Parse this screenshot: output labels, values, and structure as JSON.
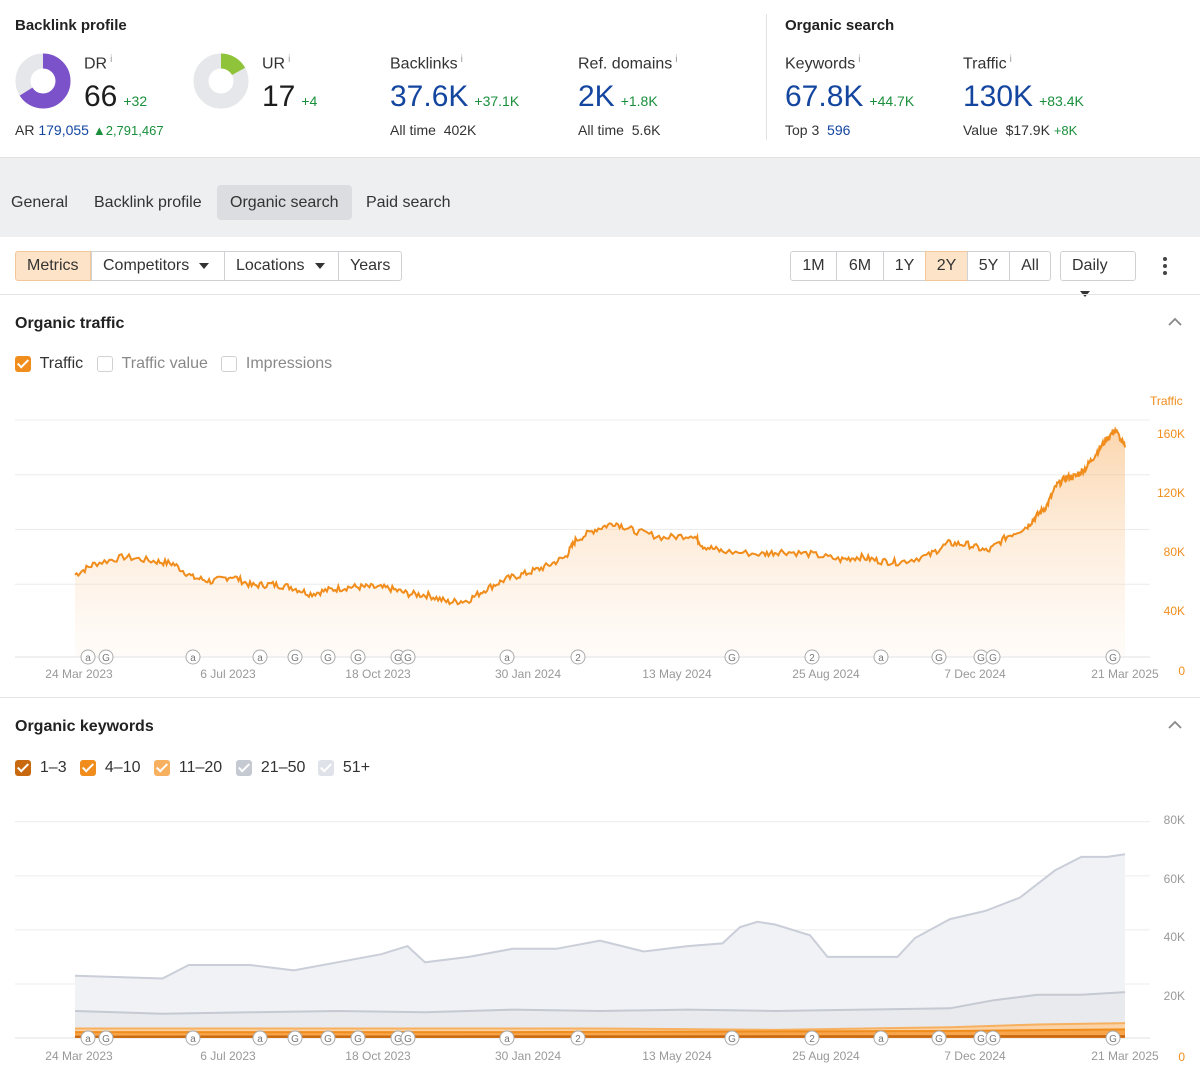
{
  "backlink": {
    "title": "Backlink profile",
    "dr": {
      "label": "DR",
      "info": "i",
      "value": "66",
      "delta": "+32",
      "fill": 0.66,
      "color": "#7b52c9"
    },
    "ar": {
      "label": "AR",
      "value": "179,055",
      "delta": "2,791,467"
    },
    "ur": {
      "label": "UR",
      "info": "i",
      "value": "17",
      "delta": "+4",
      "fill": 0.17,
      "color": "#8fc43a"
    },
    "backlinks": {
      "label": "Backlinks",
      "info": "i",
      "value": "37.6K",
      "delta": "+37.1K",
      "sub_label": "All time",
      "sub_value": "402K"
    },
    "refdomains": {
      "label": "Ref. domains",
      "info": "i",
      "value": "2K",
      "delta": "+1.8K",
      "sub_label": "All time",
      "sub_value": "5.6K"
    }
  },
  "organic": {
    "title": "Organic search",
    "keywords": {
      "label": "Keywords",
      "info": "i",
      "value": "67.8K",
      "delta": "+44.7K",
      "sub_label": "Top 3",
      "sub_value": "596"
    },
    "traffic": {
      "label": "Traffic",
      "info": "i",
      "value": "130K",
      "delta": "+83.4K",
      "sub_label": "Value",
      "sub_value": "$17.9K",
      "sub_delta": "+8K"
    }
  },
  "tabs": [
    "General",
    "Backlink profile",
    "Organic search",
    "Paid search"
  ],
  "active_tab": "Organic search",
  "toolbar": {
    "metrics": "Metrics",
    "competitors": "Competitors",
    "locations": "Locations",
    "years": "Years",
    "ranges": [
      "1M",
      "6M",
      "1Y",
      "2Y",
      "5Y",
      "All"
    ],
    "active_range": "2Y",
    "granularity": "Daily"
  },
  "traffic_panel": {
    "title": "Organic traffic",
    "checkboxes": [
      {
        "label": "Traffic",
        "checked": true
      },
      {
        "label": "Traffic value",
        "checked": false
      },
      {
        "label": "Impressions",
        "checked": false
      }
    ],
    "axis_label": "Traffic",
    "y_ticks": [
      "160K",
      "120K",
      "80K",
      "40K",
      "0"
    ],
    "x_ticks": [
      "24 Mar 2023",
      "6 Jul 2023",
      "18 Oct 2023",
      "30 Jan 2024",
      "13 May 2024",
      "25 Aug 2024",
      "7 Dec 2024",
      "21 Mar 2025"
    ],
    "markers": [
      "a",
      "G",
      "a",
      "a",
      "G",
      "G",
      "G",
      "G",
      "G",
      "a",
      "2",
      "G",
      "2",
      "a",
      "G",
      "G",
      "G",
      "G"
    ]
  },
  "keywords_panel": {
    "title": "Organic keywords",
    "checkboxes": [
      {
        "label": "1–3",
        "checked": true,
        "color": "#c8680f"
      },
      {
        "label": "4–10",
        "checked": true,
        "color": "#f08d1c"
      },
      {
        "label": "11–20",
        "checked": true,
        "color": "#f7b060"
      },
      {
        "label": "21–50",
        "checked": true,
        "color": "#c4c9d2"
      },
      {
        "label": "51+",
        "checked": true,
        "color": "#dfe2e8"
      }
    ],
    "y_ticks": [
      "80K",
      "60K",
      "40K",
      "20K",
      "0"
    ],
    "x_ticks": [
      "24 Mar 2023",
      "6 Jul 2023",
      "18 Oct 2023",
      "30 Jan 2024",
      "13 May 2024",
      "25 Aug 2024",
      "7 Dec 2024",
      "21 Mar 2025"
    ]
  },
  "chart_data": [
    {
      "type": "area",
      "title": "Organic traffic",
      "ylabel": "Traffic",
      "ylim": [
        0,
        160000
      ],
      "x": [
        "24 Mar 2023",
        "6 Jul 2023",
        "18 Oct 2023",
        "30 Jan 2024",
        "13 May 2024",
        "25 Aug 2024",
        "7 Dec 2024",
        "21 Mar 2025"
      ],
      "series": [
        {
          "name": "Traffic",
          "color": "#f08d1c",
          "points": [
            [
              0,
              47000
            ],
            [
              0.02,
              55000
            ],
            [
              0.05,
              60000
            ],
            [
              0.08,
              57000
            ],
            [
              0.1,
              55000
            ],
            [
              0.12,
              45000
            ],
            [
              0.14,
              42000
            ],
            [
              0.16,
              46000
            ],
            [
              0.18,
              39000
            ],
            [
              0.2,
              40000
            ],
            [
              0.22,
              38000
            ],
            [
              0.24,
              33000
            ],
            [
              0.26,
              36000
            ],
            [
              0.28,
              38000
            ],
            [
              0.3,
              38000
            ],
            [
              0.32,
              37000
            ],
            [
              0.34,
              33000
            ],
            [
              0.36,
              32000
            ],
            [
              0.38,
              27000
            ],
            [
              0.4,
              28000
            ],
            [
              0.42,
              37000
            ],
            [
              0.44,
              44000
            ],
            [
              0.46,
              48000
            ],
            [
              0.48,
              53000
            ],
            [
              0.5,
              60000
            ],
            [
              0.51,
              72000
            ],
            [
              0.53,
              80000
            ],
            [
              0.55,
              85000
            ],
            [
              0.57,
              79000
            ],
            [
              0.6,
              74000
            ],
            [
              0.63,
              76000
            ],
            [
              0.64,
              68000
            ],
            [
              0.66,
              64000
            ],
            [
              0.7,
              62000
            ],
            [
              0.72,
              64000
            ],
            [
              0.75,
              62000
            ],
            [
              0.78,
              58000
            ],
            [
              0.8,
              60000
            ],
            [
              0.82,
              57000
            ],
            [
              0.84,
              56000
            ],
            [
              0.87,
              61000
            ],
            [
              0.89,
              70000
            ],
            [
              0.91,
              69000
            ],
            [
              0.93,
              64000
            ],
            [
              0.95,
              75000
            ],
            [
              0.97,
              82000
            ],
            [
              0.98,
              90000
            ],
            [
              0.99,
              97000
            ],
            [
              1.0,
              112000
            ],
            [
              1.01,
              118000
            ],
            [
              1.02,
              119000
            ],
            [
              1.03,
              125000
            ],
            [
              1.04,
              135000
            ],
            [
              1.05,
              145000
            ],
            [
              1.06,
              153000
            ],
            [
              1.07,
              140000
            ]
          ]
        }
      ]
    },
    {
      "type": "area",
      "title": "Organic keywords",
      "ylim": [
        0,
        80000
      ],
      "x": [
        "24 Mar 2023",
        "6 Jul 2023",
        "18 Oct 2023",
        "30 Jan 2024",
        "13 May 2024",
        "25 Aug 2024",
        "7 Dec 2024",
        "21 Mar 2025"
      ],
      "series": [
        {
          "name": "51+",
          "points": [
            [
              0,
              23000
            ],
            [
              0.1,
              22000
            ],
            [
              0.13,
              27000
            ],
            [
              0.2,
              27000
            ],
            [
              0.25,
              25000
            ],
            [
              0.3,
              28000
            ],
            [
              0.35,
              31000
            ],
            [
              0.38,
              34000
            ],
            [
              0.4,
              28000
            ],
            [
              0.45,
              30000
            ],
            [
              0.5,
              33000
            ],
            [
              0.55,
              33000
            ],
            [
              0.6,
              36000
            ],
            [
              0.65,
              32000
            ],
            [
              0.7,
              34000
            ],
            [
              0.74,
              35000
            ],
            [
              0.76,
              41000
            ],
            [
              0.78,
              43000
            ],
            [
              0.8,
              42000
            ],
            [
              0.84,
              38000
            ],
            [
              0.86,
              30000
            ],
            [
              0.9,
              30000
            ],
            [
              0.94,
              30000
            ],
            [
              0.96,
              37000
            ],
            [
              1.0,
              44000
            ],
            [
              1.04,
              47000
            ],
            [
              1.08,
              52000
            ],
            [
              1.12,
              62000
            ],
            [
              1.15,
              67000
            ],
            [
              1.18,
              67000
            ],
            [
              1.2,
              68000
            ]
          ]
        },
        {
          "name": "21–50",
          "points": [
            [
              0,
              10000
            ],
            [
              0.1,
              9000
            ],
            [
              0.2,
              9500
            ],
            [
              0.3,
              10000
            ],
            [
              0.4,
              9500
            ],
            [
              0.5,
              10500
            ],
            [
              0.6,
              10000
            ],
            [
              0.7,
              10500
            ],
            [
              0.8,
              10000
            ],
            [
              0.9,
              10500
            ],
            [
              1.0,
              11000
            ],
            [
              1.05,
              14000
            ],
            [
              1.1,
              16000
            ],
            [
              1.15,
              16000
            ],
            [
              1.2,
              17000
            ]
          ]
        },
        {
          "name": "11–20",
          "points": [
            [
              0,
              3500
            ],
            [
              0.4,
              3500
            ],
            [
              0.6,
              3500
            ],
            [
              0.8,
              3000
            ],
            [
              1.0,
              4000
            ],
            [
              1.1,
              5000
            ],
            [
              1.2,
              5500
            ]
          ]
        },
        {
          "name": "4–10",
          "points": [
            [
              0,
              2200
            ],
            [
              0.5,
              2200
            ],
            [
              1.0,
              2600
            ],
            [
              1.2,
              3200
            ]
          ]
        },
        {
          "name": "1–3",
          "points": [
            [
              0,
              500
            ],
            [
              1.2,
              700
            ]
          ]
        }
      ]
    }
  ]
}
